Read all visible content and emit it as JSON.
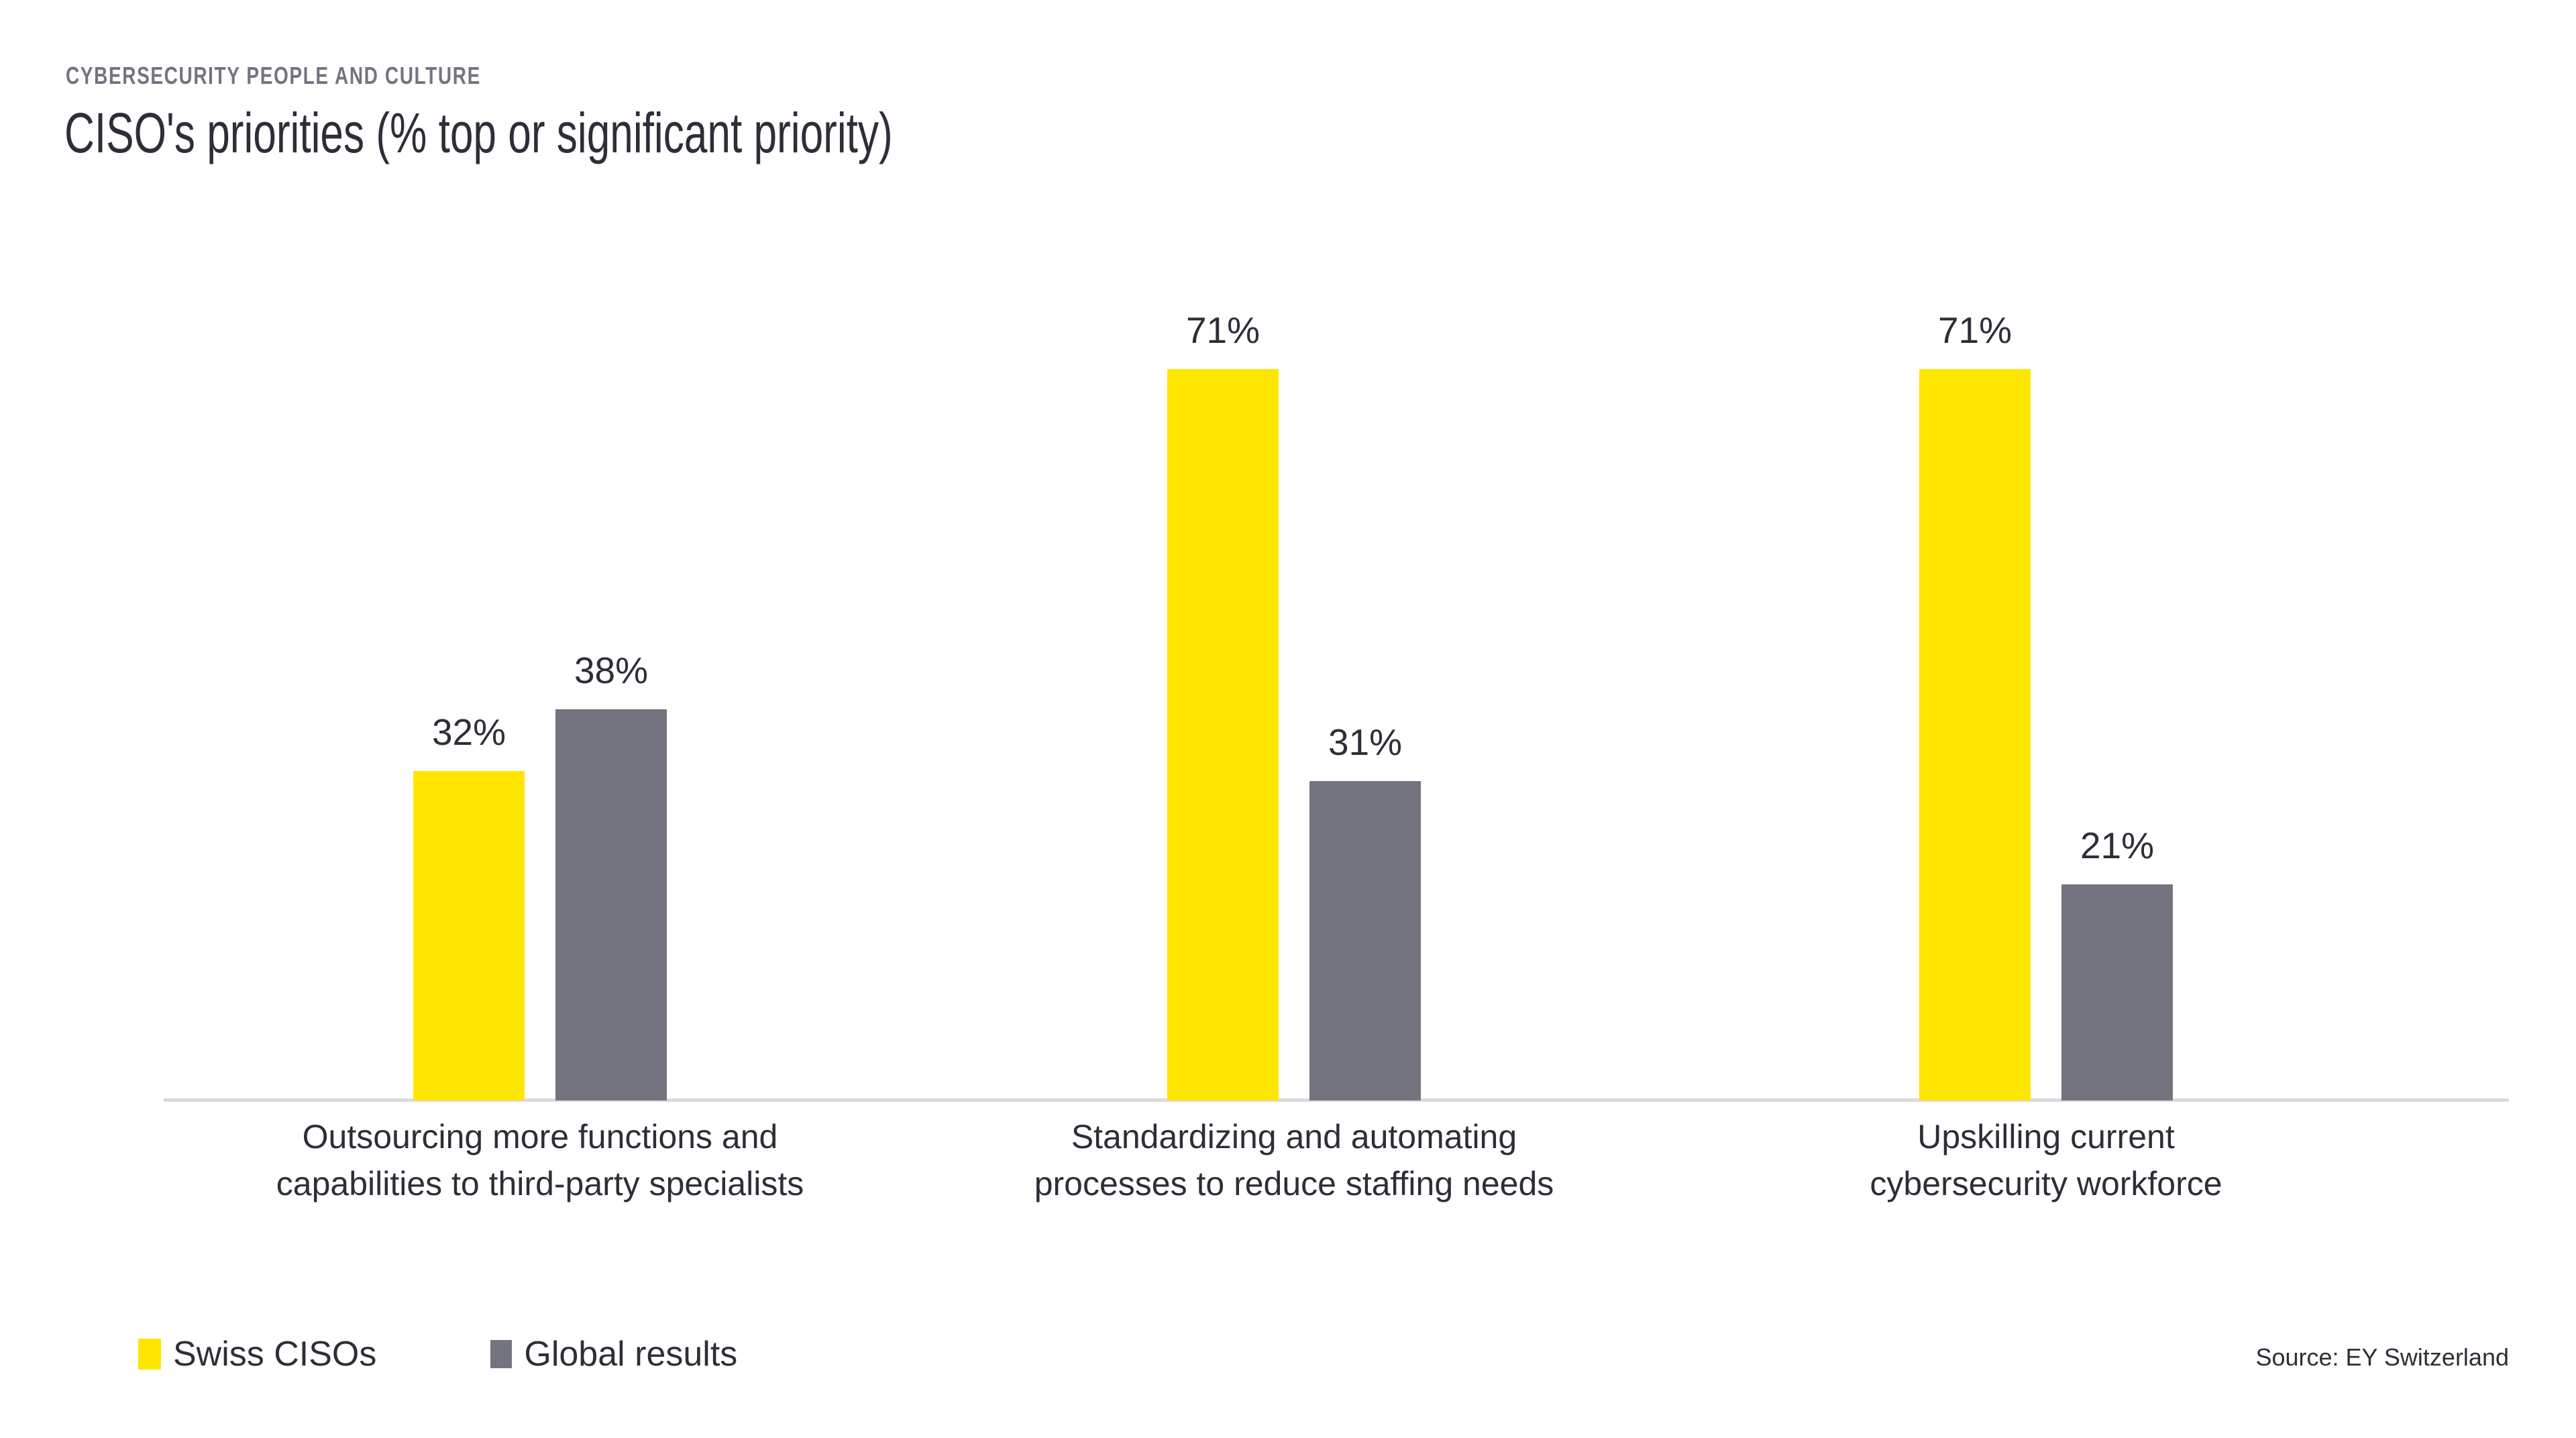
{
  "header": {
    "eyebrow": "CYBERSECURITY PEOPLE AND CULTURE",
    "title": "CISO's priorities (% top or significant priority)"
  },
  "source": "Source: EY Switzerland",
  "colors": {
    "swiss_cisos": "#FFE600",
    "global_results": "#747480",
    "text": "#2E2E38",
    "muted_text": "#747480",
    "axis_line": "#DADAE0"
  },
  "legend": [
    {
      "label": "Swiss CISOs",
      "color": "#FFE600"
    },
    {
      "label": "Global results",
      "color": "#747480"
    }
  ],
  "chart_data": {
    "type": "bar",
    "title": "CISO's priorities (% top or significant priority)",
    "categories": [
      "Outsourcing more functions and\ncapabilities to third-party specialists",
      "Standardizing and automating\nprocesses to reduce staffing needs",
      "Upskilling current\ncybersecurity workforce"
    ],
    "series": [
      {
        "name": "Swiss CISOs",
        "color": "#FFE600",
        "values": [
          32,
          71,
          71
        ],
        "labels": [
          "32%",
          "71%",
          "71%"
        ]
      },
      {
        "name": "Global results",
        "color": "#747480",
        "values": [
          38,
          31,
          21
        ],
        "labels": [
          "38%",
          "31%",
          "21%"
        ]
      }
    ],
    "value_suffix": "%",
    "ylim": [
      0,
      100
    ],
    "grid": false,
    "y_axis_visible": false,
    "legend_position": "bottom-left",
    "source": "Source: EY Switzerland"
  }
}
